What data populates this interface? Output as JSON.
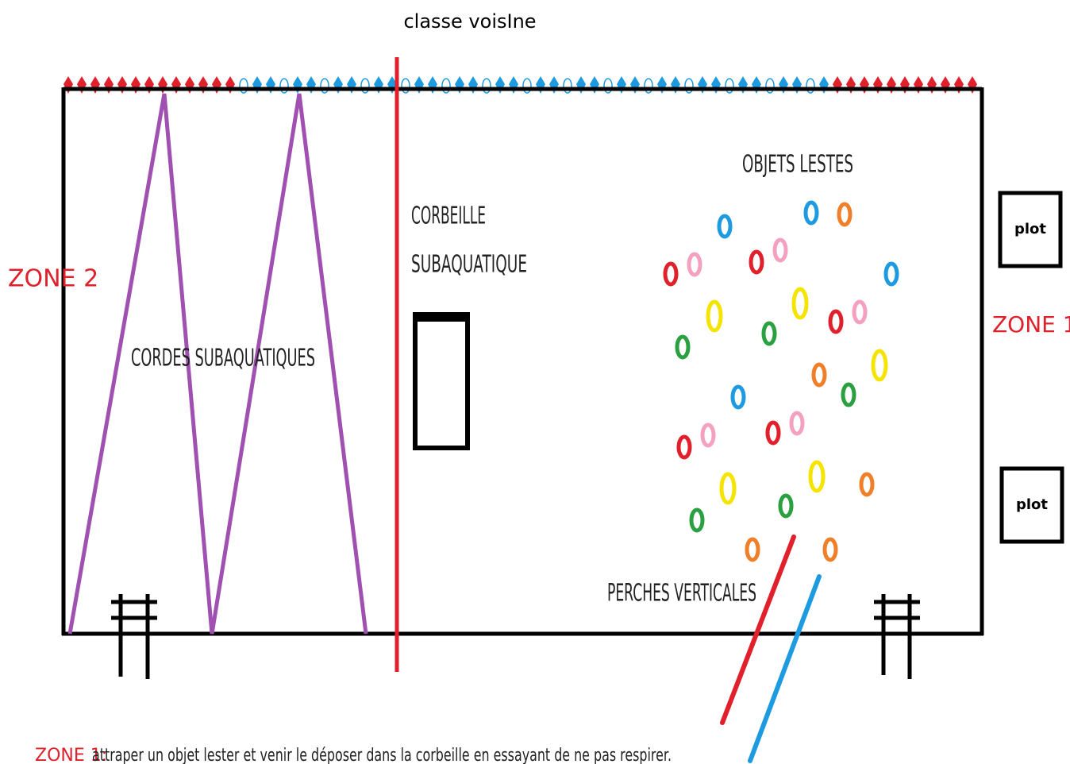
{
  "header": {
    "title": "classe voisIne"
  },
  "zones": {
    "left": "ZONE 2",
    "right": "ZONE 1"
  },
  "labels": {
    "ropes": "CORDES SUBAQUATIQUES",
    "basket_1": "CORBEILLE",
    "basket_2": "SUBAQUATIQUE",
    "objects": "OBJETS LESTES",
    "poles": "PERCHES VERTICALES"
  },
  "plots": [
    "plot",
    "plot"
  ],
  "footer": {
    "zone": "ZONE 1:",
    "text": "attraper un objet lester et venir le déposer dans la corbeille en essayant de ne pas respirer."
  }
}
